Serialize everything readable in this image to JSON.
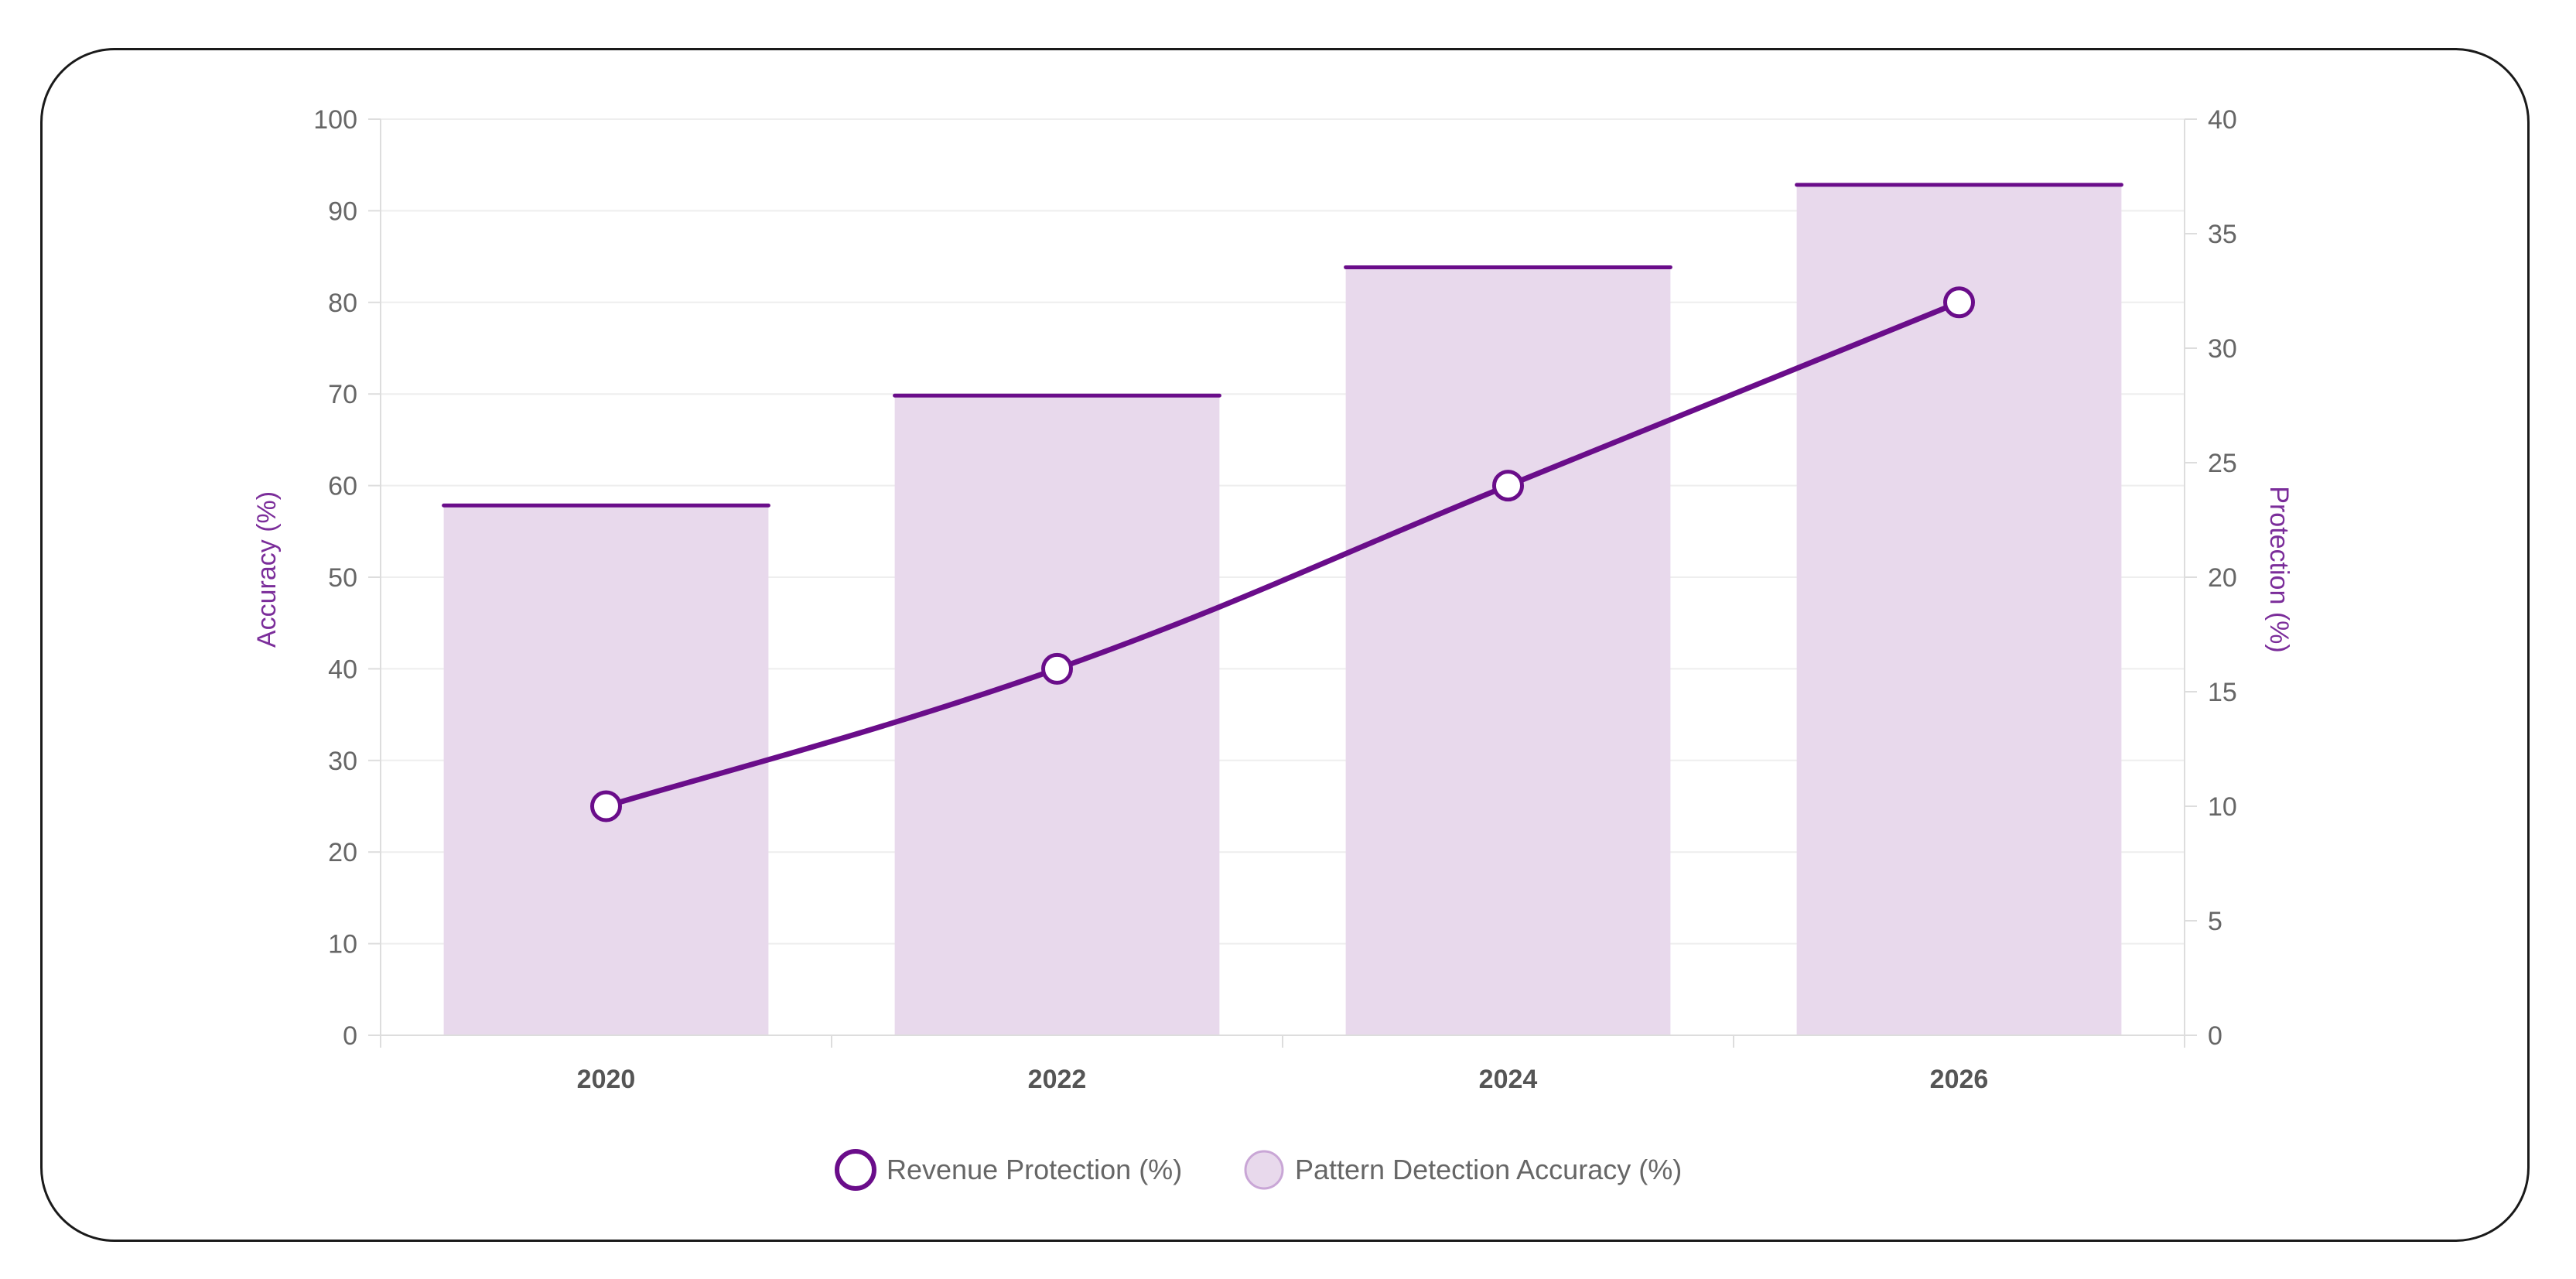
{
  "chart_data": {
    "type": "bar+line",
    "categories": [
      "2020",
      "2022",
      "2024",
      "2026"
    ],
    "series": [
      {
        "name": "Revenue Protection (%)",
        "type": "line",
        "axis": "right",
        "values": [
          10,
          16,
          24,
          32
        ],
        "color": "#6a0d8a"
      },
      {
        "name": "Pattern Detection Accuracy (%)",
        "type": "bar",
        "axis": "left",
        "values": [
          58,
          70,
          84,
          93
        ],
        "color": "#6a0d8a",
        "fill": "#e8d9ec"
      }
    ],
    "yleft": {
      "label": "Accuracy (%)",
      "min": 0,
      "max": 100,
      "step": 10
    },
    "yright": {
      "label": "Protection (%)",
      "min": 0,
      "max": 40,
      "step": 5
    },
    "grid": true,
    "legend": "bottom",
    "axis_title_color": "#7b2d9a",
    "tick_color": "#666666",
    "grid_color": "#eeeeee"
  }
}
